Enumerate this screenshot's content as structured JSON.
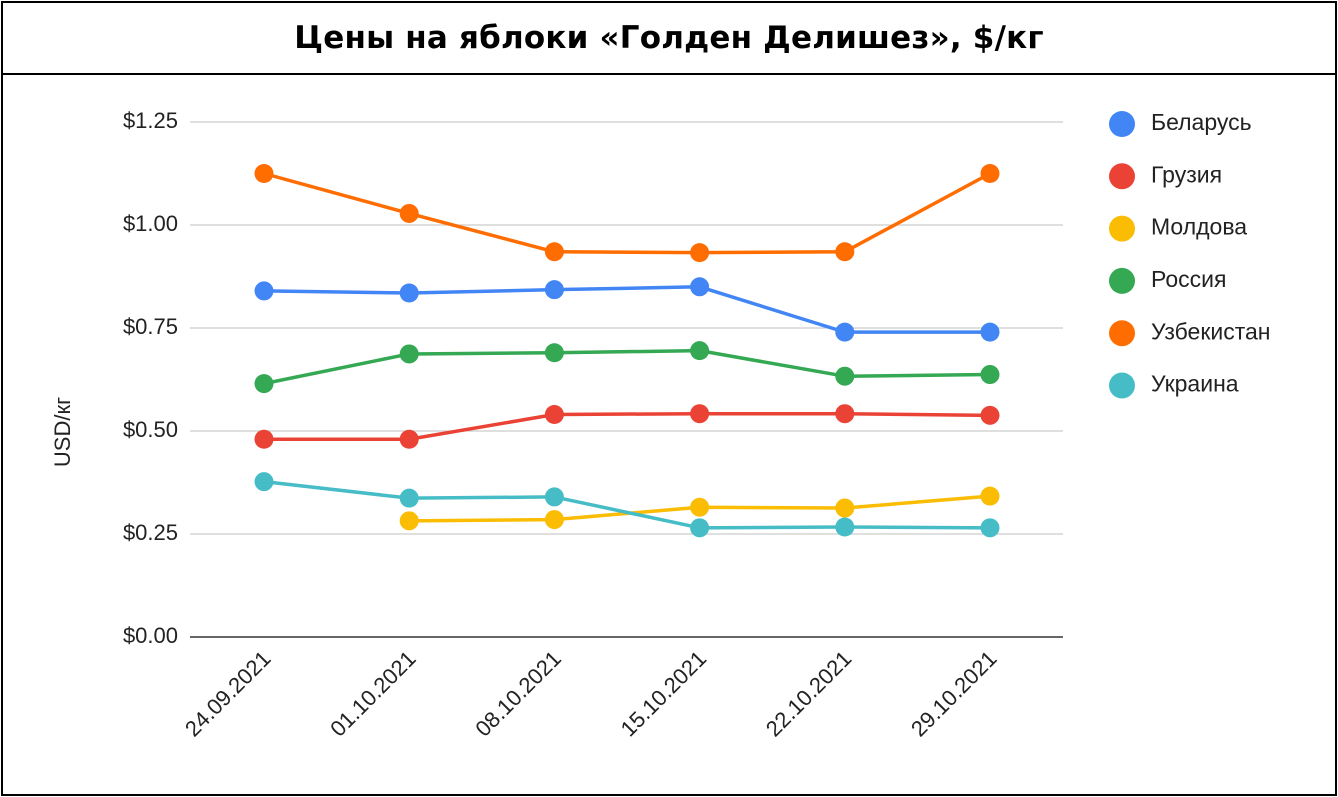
{
  "chart_data": {
    "type": "line",
    "title": "Цены на яблоки «Голден Делишез», $/кг",
    "xlabel": "",
    "ylabel": "USD/кг",
    "ylim": [
      0,
      1.25
    ],
    "y_ticks": [
      0,
      0.25,
      0.5,
      0.75,
      1.0,
      1.25
    ],
    "y_tick_labels": [
      "$0.00",
      "$0.25",
      "$0.50",
      "$0.75",
      "$1.00",
      "$1.25"
    ],
    "categories": [
      "24.09.2021",
      "01.10.2021",
      "08.10.2021",
      "15.10.2021",
      "22.10.2021",
      "29.10.2021"
    ],
    "grid": true,
    "legend_position": "right",
    "series": [
      {
        "name": "Беларусь",
        "color": "#4285f4",
        "values": [
          0.84,
          0.835,
          0.843,
          0.85,
          0.74,
          0.74
        ]
      },
      {
        "name": "Грузия",
        "color": "#ea4335",
        "values": [
          0.48,
          0.48,
          0.54,
          0.542,
          0.542,
          0.538
        ]
      },
      {
        "name": "Молдова",
        "color": "#fbbc04",
        "values": [
          null,
          0.282,
          0.285,
          0.315,
          0.313,
          0.342
        ]
      },
      {
        "name": "Россия",
        "color": "#34a853",
        "values": [
          0.615,
          0.687,
          0.69,
          0.695,
          0.633,
          0.637
        ]
      },
      {
        "name": "Узбекистан",
        "color": "#ff6d01",
        "values": [
          1.125,
          1.028,
          0.935,
          0.933,
          0.935,
          1.125
        ]
      },
      {
        "name": "Украина",
        "color": "#46bdc6",
        "values": [
          0.377,
          0.337,
          0.34,
          0.265,
          0.267,
          0.265
        ]
      }
    ]
  }
}
